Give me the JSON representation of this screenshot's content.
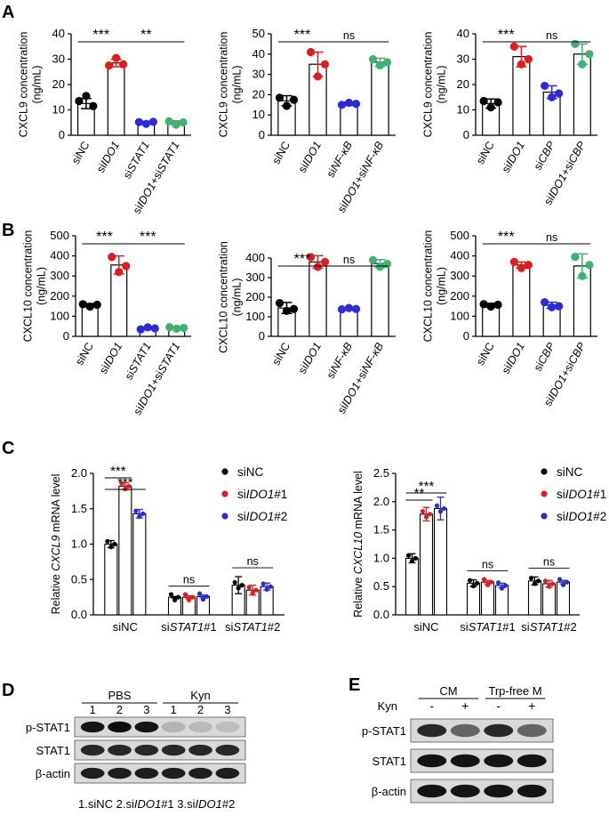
{
  "panels": {
    "A": "A",
    "B": "B",
    "C": "C",
    "D": "D",
    "E": "E"
  },
  "chart_data": [
    {
      "id": "A1",
      "panel": "A",
      "type": "bar",
      "ylabel": "CXCL9 concentration\n(ng/mL)",
      "ylim": [
        0,
        40
      ],
      "yticks": [
        0,
        10,
        20,
        30,
        40
      ],
      "categories": [
        "siNC",
        "siIDO1",
        "siSTAT1",
        "siIDO1+siSTAT1"
      ],
      "values": [
        12.5,
        28.5,
        5,
        5
      ],
      "errors": [
        2,
        1.5,
        0.5,
        0.7
      ],
      "points": [
        [
          13.5,
          15.5,
          11.5
        ],
        [
          27.5,
          30.5,
          28
        ],
        [
          5.2,
          4.5,
          5.3
        ],
        [
          5.5,
          4.2,
          5.1
        ]
      ],
      "colors": [
        "#000000",
        "#e41a1c",
        "#2b2bdc",
        "#3cb371"
      ],
      "sig": [
        {
          "from": 0,
          "to": 1,
          "text": "***"
        },
        {
          "from": 1,
          "to": 3,
          "text": "**"
        }
      ]
    },
    {
      "id": "A2",
      "panel": "A",
      "type": "bar",
      "ylabel": "CXCL9 concentration\n(ng/mL)",
      "ylim": [
        0,
        50
      ],
      "yticks": [
        0,
        10,
        20,
        30,
        40,
        50
      ],
      "categories": [
        "siNC",
        "siIDO1",
        "siNF-κB",
        "siIDO1+siNF-κB"
      ],
      "values": [
        17,
        35,
        15.5,
        36
      ],
      "errors": [
        2.5,
        6,
        0.8,
        2
      ],
      "points": [
        [
          18.5,
          14.5,
          17.5
        ],
        [
          41,
          29,
          35
        ],
        [
          15,
          16,
          15.5
        ],
        [
          37.5,
          34.5,
          36
        ]
      ],
      "colors": [
        "#000000",
        "#e41a1c",
        "#2b2bdc",
        "#3cb371"
      ],
      "sig": [
        {
          "from": 0,
          "to": 1,
          "text": "***"
        },
        {
          "from": 1,
          "to": 3,
          "text": "ns"
        }
      ]
    },
    {
      "id": "A3",
      "panel": "A",
      "type": "bar",
      "ylabel": "CXCL9 concentration\n(ng/mL)",
      "ylim": [
        0,
        40
      ],
      "yticks": [
        0,
        10,
        20,
        30,
        40
      ],
      "categories": [
        "siNC",
        "siIDO1",
        "siCBP",
        "siIDO1+siCBP"
      ],
      "values": [
        12.5,
        31,
        17,
        32
      ],
      "errors": [
        1.8,
        4,
        2.5,
        4
      ],
      "points": [
        [
          13.5,
          11,
          13
        ],
        [
          35,
          28,
          30
        ],
        [
          19.5,
          15,
          16.5
        ],
        [
          36,
          28,
          32
        ]
      ],
      "colors": [
        "#000000",
        "#e41a1c",
        "#2b2bdc",
        "#3cb371"
      ],
      "sig": [
        {
          "from": 0,
          "to": 1,
          "text": "***"
        },
        {
          "from": 1,
          "to": 3,
          "text": "ns"
        }
      ]
    },
    {
      "id": "B1",
      "panel": "B",
      "type": "bar",
      "ylabel": "CXCL10 concentration\n(ng/mL)",
      "ylim": [
        0,
        500
      ],
      "yticks": [
        0,
        100,
        200,
        300,
        400,
        500
      ],
      "categories": [
        "siNC",
        "siIDO1",
        "siSTAT1",
        "siIDO1+siSTAT1"
      ],
      "values": [
        155,
        355,
        40,
        42
      ],
      "errors": [
        8,
        45,
        6,
        6
      ],
      "points": [
        [
          160,
          148,
          157
        ],
        [
          395,
          320,
          350
        ],
        [
          35,
          45,
          40
        ],
        [
          46,
          38,
          42
        ]
      ],
      "colors": [
        "#000000",
        "#e41a1c",
        "#2b2bdc",
        "#3cb371"
      ],
      "sig": [
        {
          "from": 0,
          "to": 1,
          "text": "***"
        },
        {
          "from": 1,
          "to": 3,
          "text": "***"
        }
      ]
    },
    {
      "id": "B2",
      "panel": "B",
      "type": "bar",
      "ylabel": "CXCL10 concentration\n(ng/mL)",
      "ylim": [
        0,
        400
      ],
      "yticks": [
        0,
        100,
        200,
        300,
        400
      ],
      "categories": [
        "siNC",
        "siIDO1",
        "siNF-κB",
        "siIDO1+siNF-κB"
      ],
      "values": [
        145,
        380,
        140,
        372
      ],
      "errors": [
        28,
        32,
        6,
        20
      ],
      "points": [
        [
          170,
          130,
          140
        ],
        [
          405,
          355,
          380
        ],
        [
          138,
          145,
          140
        ],
        [
          390,
          355,
          370
        ]
      ],
      "colors": [
        "#000000",
        "#e41a1c",
        "#2b2bdc",
        "#3cb371"
      ],
      "sig": [
        {
          "from": 0,
          "to": 1,
          "text": "***"
        },
        {
          "from": 1,
          "to": 3,
          "text": "ns"
        }
      ]
    },
    {
      "id": "B3",
      "panel": "B",
      "type": "bar",
      "ylabel": "CXCL10 concentration\n(ng/mL)",
      "ylim": [
        0,
        500
      ],
      "yticks": [
        0,
        100,
        200,
        300,
        400,
        500
      ],
      "categories": [
        "siNC",
        "siIDO1",
        "siCBP",
        "siIDO1+siCBP"
      ],
      "values": [
        155,
        355,
        155,
        350
      ],
      "errors": [
        10,
        15,
        15,
        60
      ],
      "points": [
        [
          160,
          148,
          157
        ],
        [
          370,
          340,
          355
        ],
        [
          170,
          145,
          150
        ],
        [
          395,
          300,
          355
        ]
      ],
      "colors": [
        "#000000",
        "#e41a1c",
        "#2b2bdc",
        "#3cb371"
      ],
      "sig": [
        {
          "from": 0,
          "to": 1,
          "text": "***"
        },
        {
          "from": 1,
          "to": 3,
          "text": "ns"
        }
      ]
    },
    {
      "id": "C1",
      "panel": "C",
      "type": "bar",
      "ylabel": "Relative CXCL9 mRNA level",
      "ylim": [
        0,
        2.0
      ],
      "yticks": [
        0,
        0.5,
        1.0,
        1.5,
        2.0
      ],
      "groups": [
        "siNC",
        "siSTAT1#1",
        "siSTAT1#2"
      ],
      "legend": [
        "siNC",
        "siIDO1#1",
        "siIDO1#2"
      ],
      "series_colors": [
        "#000000",
        "#e41a1c",
        "#2b2bdc"
      ],
      "values": [
        [
          1.0,
          1.82,
          1.43
        ],
        [
          0.25,
          0.25,
          0.26
        ],
        [
          0.42,
          0.35,
          0.4
        ]
      ],
      "errors": [
        [
          0.05,
          0.05,
          0.06
        ],
        [
          0.01,
          0.02,
          0.02
        ],
        [
          0.12,
          0.07,
          0.05
        ]
      ],
      "sig": [
        {
          "g": 0,
          "from": 0,
          "to": 1,
          "text": "***"
        },
        {
          "g": 0,
          "from": 0,
          "to": 2,
          "text": "***"
        },
        {
          "g": 1,
          "from": 0,
          "to": 2,
          "text": "ns"
        },
        {
          "g": 2,
          "from": 0,
          "to": 2,
          "text": "ns"
        }
      ]
    },
    {
      "id": "C2",
      "panel": "C",
      "type": "bar",
      "ylabel": "Relative CXCL10 mRNA level",
      "ylim": [
        0,
        2.5
      ],
      "yticks": [
        0,
        0.5,
        1.0,
        1.5,
        2.0,
        2.5
      ],
      "groups": [
        "siNC",
        "siSTAT1#1",
        "siSTAT1#2"
      ],
      "legend": [
        "siNC",
        "siIDO1#1",
        "siIDO1#2"
      ],
      "series_colors": [
        "#000000",
        "#e41a1c",
        "#2b2bdc"
      ],
      "values": [
        [
          1.0,
          1.78,
          1.88
        ],
        [
          0.56,
          0.58,
          0.52
        ],
        [
          0.6,
          0.55,
          0.58
        ]
      ],
      "errors": [
        [
          0.08,
          0.12,
          0.2
        ],
        [
          0.06,
          0.03,
          0.04
        ],
        [
          0.07,
          0.06,
          0.03
        ]
      ],
      "sig": [
        {
          "g": 0,
          "from": 0,
          "to": 1,
          "text": "**"
        },
        {
          "g": 0,
          "from": 0,
          "to": 2,
          "text": "***"
        },
        {
          "g": 1,
          "from": 0,
          "to": 2,
          "text": "ns"
        },
        {
          "g": 2,
          "from": 0,
          "to": 2,
          "text": "ns"
        }
      ]
    }
  ],
  "blotD": {
    "groups": [
      "PBS",
      "Kyn"
    ],
    "lanes": [
      "1",
      "2",
      "3",
      "1",
      "2",
      "3"
    ],
    "rows": [
      {
        "label": "p-STAT1",
        "intensity": [
          0.95,
          0.98,
          0.95,
          0.15,
          0.12,
          0.1
        ]
      },
      {
        "label": "STAT1",
        "intensity": [
          0.85,
          0.85,
          0.85,
          0.85,
          0.85,
          0.85
        ]
      },
      {
        "label": "β-actin",
        "intensity": [
          0.9,
          0.9,
          0.9,
          0.9,
          0.9,
          0.9
        ]
      }
    ],
    "footnote": "1.siNC  2.siIDO1#1  3.siIDO1#2"
  },
  "blotE": {
    "groups": [
      "CM",
      "Trp-free M"
    ],
    "row_header": "Kyn",
    "lanes": [
      "-",
      "+",
      "-",
      "+"
    ],
    "rows": [
      {
        "label": "p-STAT1",
        "intensity": [
          0.85,
          0.55,
          0.85,
          0.55
        ]
      },
      {
        "label": "STAT1",
        "intensity": [
          0.95,
          0.95,
          0.95,
          0.95
        ]
      },
      {
        "label": "β-actin",
        "intensity": [
          0.95,
          0.95,
          0.95,
          0.95
        ]
      }
    ]
  }
}
